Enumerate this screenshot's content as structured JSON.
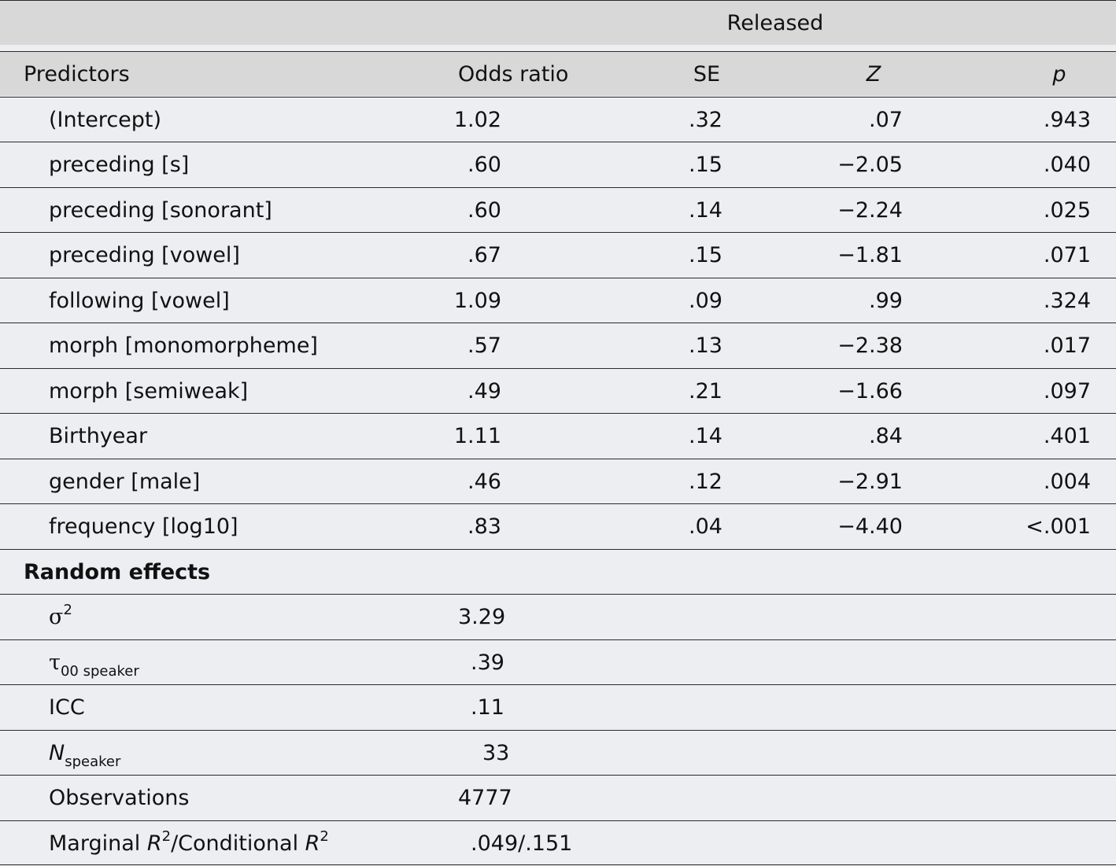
{
  "header": {
    "group": "Released",
    "columns": {
      "predictors": "Predictors",
      "odds": "Odds ratio",
      "se": "SE",
      "z": "Z",
      "p": "p"
    }
  },
  "fixed": [
    {
      "label": "(Intercept)",
      "odds": "1.02",
      "se": ".32",
      "z": ".07",
      "p": ".943"
    },
    {
      "label": "preceding [s]",
      "odds": ".60",
      "se": ".15",
      "z": "−2.05",
      "p": ".040"
    },
    {
      "label": "preceding [sonorant]",
      "odds": ".60",
      "se": ".14",
      "z": "−2.24",
      "p": ".025"
    },
    {
      "label": "preceding [vowel]",
      "odds": ".67",
      "se": ".15",
      "z": "−1.81",
      "p": ".071"
    },
    {
      "label": "following [vowel]",
      "odds": "1.09",
      "se": ".09",
      "z": ".99",
      "p": ".324"
    },
    {
      "label": "morph [monomorpheme]",
      "odds": ".57",
      "se": ".13",
      "z": "−2.38",
      "p": ".017"
    },
    {
      "label": "morph [semiweak]",
      "odds": ".49",
      "se": ".21",
      "z": "−1.66",
      "p": ".097"
    },
    {
      "label": "Birthyear",
      "odds": "1.11",
      "se": ".14",
      "z": ".84",
      "p": ".401"
    },
    {
      "label": "gender [male]",
      "odds": ".46",
      "se": ".12",
      "z": "−2.91",
      "p": ".004"
    },
    {
      "label": "frequency [log10]",
      "odds": ".83",
      "se": ".04",
      "z": "−4.40",
      "p": "<.001"
    }
  ],
  "random": {
    "title": "Random effects",
    "sigma": {
      "symbol": "σ",
      "sup": "2",
      "value": "3.29"
    },
    "tau": {
      "symbol": "τ",
      "sub": "00 speaker",
      "value": ".39"
    },
    "icc": {
      "label": "ICC",
      "value": ".11"
    },
    "n": {
      "symbol": "N",
      "sub": "speaker",
      "value": "33"
    },
    "obs": {
      "label": "Observations",
      "value": "4777"
    },
    "r2": {
      "marginal": "Marginal ",
      "conditional": "/Conditional ",
      "r": "R",
      "sup": "2",
      "value": ".049/.151"
    }
  }
}
